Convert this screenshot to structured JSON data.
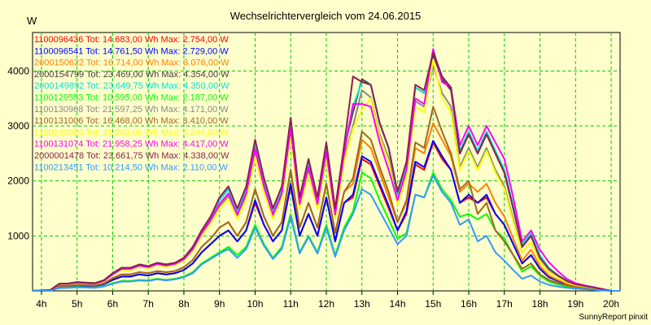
{
  "chart_data": {
    "type": "line",
    "title": "Wechselrichtervergleich vom 24.06.2015",
    "ylabel": "W",
    "footer": "SunnyReport pinxit",
    "ylim": [
      0,
      4700
    ],
    "xlim": [
      3.75,
      20.25
    ],
    "y_ticks": [
      1000,
      2000,
      3000,
      4000
    ],
    "x_ticks": [
      {
        "v": 4,
        "label": "4h"
      },
      {
        "v": 5,
        "label": "5h"
      },
      {
        "v": 6,
        "label": "6h"
      },
      {
        "v": 7,
        "label": "7h"
      },
      {
        "v": 8,
        "label": "8h"
      },
      {
        "v": 9,
        "label": "9h"
      },
      {
        "v": 10,
        "label": "10h"
      },
      {
        "v": 11,
        "label": "11h"
      },
      {
        "v": 12,
        "label": "12h"
      },
      {
        "v": 13,
        "label": "13h"
      },
      {
        "v": 14,
        "label": "14h"
      },
      {
        "v": 15,
        "label": "15h"
      },
      {
        "v": 16,
        "label": "16h"
      },
      {
        "v": 17,
        "label": "17h"
      },
      {
        "v": 18,
        "label": "18h"
      },
      {
        "v": 19,
        "label": "19h"
      },
      {
        "v": 20,
        "label": "20h"
      }
    ],
    "grid": true,
    "legend_position": "top-left",
    "x": [
      3.75,
      4.25,
      4.5,
      4.75,
      5,
      5.25,
      5.5,
      5.75,
      6,
      6.25,
      6.5,
      6.75,
      7,
      7.25,
      7.5,
      7.75,
      8,
      8.25,
      8.5,
      8.75,
      9,
      9.25,
      9.5,
      9.75,
      10,
      10.25,
      10.5,
      10.75,
      11,
      11.25,
      11.5,
      11.75,
      12,
      12.25,
      12.5,
      12.75,
      13,
      13.25,
      13.5,
      13.75,
      14,
      14.25,
      14.5,
      14.75,
      15,
      15.25,
      15.5,
      15.75,
      16,
      16.25,
      16.5,
      16.75,
      17,
      17.25,
      17.5,
      17.75,
      18,
      18.25,
      18.5,
      18.75,
      19,
      19.25,
      19.5,
      19.75,
      20,
      20.25
    ],
    "series": [
      {
        "name": "1100096436 Tot: 14.683,00 Wh Max: 2.754,00 W",
        "color": "#ff0000",
        "values": [
          0,
          10,
          80,
          85,
          100,
          95,
          90,
          120,
          200,
          260,
          260,
          300,
          280,
          320,
          300,
          320,
          380,
          500,
          700,
          850,
          1000,
          1100,
          900,
          1100,
          1600,
          1200,
          900,
          1100,
          1900,
          1000,
          1400,
          1000,
          1700,
          900,
          1600,
          1700,
          2400,
          2300,
          1900,
          1500,
          1100,
          1400,
          2300,
          2200,
          2700,
          2400,
          2200,
          1600,
          1700,
          1600,
          1700,
          1400,
          1200,
          850,
          500,
          650,
          400,
          250,
          180,
          120,
          80,
          60,
          40,
          20,
          0,
          0
        ]
      },
      {
        "name": "1100096541 Tot: 14.761,50 Wh Max: 2.729,00 W",
        "color": "#0000ff",
        "values": [
          0,
          10,
          80,
          85,
          100,
          95,
          90,
          120,
          200,
          260,
          260,
          300,
          280,
          320,
          300,
          320,
          380,
          500,
          700,
          850,
          1000,
          1100,
          900,
          1100,
          1650,
          1200,
          900,
          1100,
          1950,
          1000,
          1400,
          1000,
          1700,
          900,
          1600,
          1750,
          2450,
          2350,
          1950,
          1550,
          1100,
          1450,
          2350,
          2250,
          2730,
          2450,
          2200,
          1600,
          1750,
          1600,
          1750,
          1400,
          1200,
          850,
          500,
          650,
          400,
          250,
          180,
          120,
          80,
          60,
          40,
          20,
          0,
          0
        ]
      },
      {
        "name": "2000150622 Tot: 16.714,00 Wh Max: 3.076,00 W",
        "color": "#ff8000",
        "values": [
          0,
          10,
          90,
          95,
          110,
          105,
          100,
          135,
          230,
          300,
          300,
          340,
          320,
          360,
          340,
          360,
          430,
          560,
          800,
          950,
          1150,
          1250,
          1000,
          1250,
          1850,
          1350,
          1000,
          1250,
          2200,
          1150,
          1600,
          1150,
          1950,
          1050,
          1800,
          1950,
          2750,
          2600,
          2150,
          1700,
          1250,
          1600,
          2600,
          2500,
          3050,
          2750,
          2450,
          1800,
          1950,
          1800,
          1950,
          1600,
          1350,
          950,
          550,
          750,
          450,
          280,
          200,
          130,
          90,
          65,
          45,
          20,
          0,
          0
        ]
      },
      {
        "name": "2000154799 Tot: 23.469,00 Wh Max: 4.354,00 W",
        "color": "#404040",
        "values": [
          0,
          15,
          130,
          135,
          160,
          150,
          140,
          190,
          320,
          420,
          420,
          480,
          450,
          510,
          480,
          510,
          600,
          800,
          1100,
          1350,
          1650,
          1850,
          1450,
          1850,
          2700,
          2000,
          1450,
          1850,
          3100,
          1650,
          2350,
          1650,
          2650,
          1450,
          2600,
          3250,
          3850,
          3750,
          3050,
          2600,
          1750,
          2300,
          3700,
          3600,
          4300,
          3850,
          3650,
          2500,
          2850,
          2500,
          2850,
          2500,
          2150,
          1500,
          800,
          1000,
          600,
          400,
          280,
          180,
          120,
          90,
          60,
          30,
          0,
          0
        ]
      },
      {
        "name": "2000149892 Tot: 23.649,75 Wh Max: 4.350,00 W",
        "color": "#00e0e0",
        "values": [
          0,
          15,
          130,
          135,
          160,
          150,
          140,
          190,
          320,
          420,
          420,
          480,
          450,
          510,
          480,
          510,
          600,
          800,
          1100,
          1350,
          1650,
          1850,
          1450,
          1850,
          2700,
          2000,
          1450,
          1850,
          3100,
          1650,
          2350,
          1650,
          2650,
          1450,
          2600,
          3350,
          3800,
          3750,
          3050,
          2600,
          1750,
          2300,
          3700,
          3600,
          4350,
          3900,
          3700,
          2550,
          2900,
          2550,
          2900,
          2550,
          2200,
          1550,
          850,
          1050,
          650,
          420,
          290,
          190,
          125,
          95,
          65,
          30,
          0,
          0
        ]
      },
      {
        "name": "1100129553 Tot: 10.595,00 Wh Max: 2.187,00 W",
        "color": "#00ff00",
        "values": [
          0,
          5,
          55,
          60,
          70,
          65,
          60,
          85,
          140,
          180,
          180,
          200,
          190,
          220,
          200,
          220,
          260,
          340,
          500,
          600,
          700,
          800,
          650,
          800,
          1200,
          850,
          600,
          800,
          1400,
          700,
          1000,
          700,
          1200,
          650,
          1150,
          1450,
          2150,
          2050,
          1650,
          1300,
          950,
          1050,
          1750,
          1700,
          2150,
          1850,
          1650,
          1350,
          1400,
          1300,
          1400,
          1100,
          950,
          650,
          350,
          450,
          280,
          170,
          120,
          80,
          55,
          40,
          25,
          10,
          0,
          0
        ]
      },
      {
        "name": "1100130968 Tot: 21.597,25 Wh Max: 4.171,00 W",
        "color": "#888888",
        "values": [
          0,
          15,
          120,
          125,
          150,
          140,
          130,
          175,
          300,
          390,
          390,
          450,
          420,
          480,
          450,
          480,
          560,
          740,
          1030,
          1260,
          1540,
          1720,
          1350,
          1720,
          2500,
          1850,
          1350,
          1720,
          2900,
          1550,
          2180,
          1550,
          2470,
          1350,
          2420,
          3000,
          3650,
          3520,
          2850,
          2420,
          1620,
          2150,
          3450,
          3350,
          4100,
          3600,
          3350,
          2250,
          2600,
          2250,
          2600,
          2200,
          1900,
          1300,
          700,
          880,
          530,
          350,
          240,
          160,
          105,
          80,
          55,
          25,
          0,
          0
        ]
      },
      {
        "name": "1100131006 Tot: 16.468,00 Wh Max: 3.410,00 W",
        "color": "#a06820",
        "values": [
          0,
          10,
          90,
          95,
          110,
          105,
          100,
          135,
          230,
          300,
          300,
          340,
          320,
          360,
          340,
          360,
          430,
          560,
          800,
          950,
          1150,
          1250,
          1000,
          1250,
          1850,
          1350,
          1000,
          1250,
          2200,
          1150,
          1600,
          1150,
          1950,
          1050,
          1800,
          2050,
          2900,
          2750,
          2250,
          1800,
          1250,
          1650,
          2700,
          2600,
          3350,
          2900,
          2500,
          1850,
          2000,
          1400,
          1600,
          1100,
          900,
          650,
          400,
          500,
          300,
          200,
          140,
          100,
          70,
          50,
          35,
          15,
          0,
          0
        ]
      },
      {
        "name": "1100131023 Tot: 21.283,00 Wh Max: 4.244,00 W",
        "color": "#ffff00",
        "values": [
          0,
          15,
          120,
          125,
          145,
          135,
          125,
          170,
          290,
          380,
          380,
          440,
          410,
          470,
          440,
          470,
          550,
          720,
          1000,
          1220,
          1490,
          1670,
          1310,
          1670,
          2440,
          1800,
          1310,
          1670,
          2800,
          1490,
          2120,
          1490,
          2400,
          1310,
          2350,
          2950,
          3300,
          3500,
          2800,
          2350,
          1570,
          2080,
          3350,
          3250,
          4200,
          3500,
          3250,
          2200,
          2550,
          2200,
          2550,
          2150,
          1850,
          1250,
          700,
          880,
          520,
          340,
          240,
          160,
          105,
          80,
          55,
          25,
          0,
          0
        ]
      },
      {
        "name": "1100131074 Tot: 21.958,25 Wh Max: 4.417,00 W",
        "color": "#ff00ff",
        "values": [
          0,
          15,
          125,
          130,
          150,
          140,
          130,
          180,
          300,
          400,
          400,
          460,
          430,
          490,
          460,
          490,
          575,
          760,
          1050,
          1290,
          1580,
          1770,
          1390,
          1770,
          2580,
          1900,
          1390,
          1770,
          2950,
          1580,
          2250,
          1580,
          2530,
          1390,
          2500,
          3400,
          3400,
          3350,
          2700,
          2200,
          1650,
          2200,
          3500,
          3400,
          4400,
          3800,
          3700,
          2650,
          3000,
          2650,
          3000,
          2700,
          2400,
          1700,
          900,
          1100,
          750,
          520,
          360,
          220,
          140,
          100,
          70,
          35,
          0,
          0
        ]
      },
      {
        "name": "2000001478 Tot: 23.661,75 Wh Max: 4.338,00 W",
        "color": "#8b2050",
        "values": [
          0,
          15,
          130,
          135,
          160,
          150,
          140,
          190,
          320,
          420,
          420,
          480,
          450,
          510,
          480,
          510,
          600,
          800,
          1100,
          1350,
          1700,
          1900,
          1500,
          1900,
          2750,
          2050,
          1500,
          1900,
          3150,
          1700,
          2400,
          1700,
          2700,
          1500,
          2650,
          3900,
          3800,
          3750,
          3050,
          2600,
          1800,
          2350,
          3750,
          3650,
          4338,
          3900,
          3700,
          2500,
          2850,
          2500,
          2850,
          2500,
          2150,
          1500,
          800,
          1000,
          600,
          400,
          280,
          180,
          120,
          90,
          60,
          30,
          0,
          0
        ]
      },
      {
        "name": "1100213451 Tot: 10.214,50 Wh Max: 2.110,00 W",
        "color": "#3399ff",
        "values": [
          0,
          5,
          50,
          55,
          65,
          60,
          55,
          80,
          130,
          170,
          170,
          190,
          180,
          210,
          190,
          210,
          250,
          320,
          480,
          580,
          680,
          760,
          600,
          760,
          1150,
          820,
          580,
          760,
          1350,
          680,
          980,
          680,
          1150,
          620,
          1100,
          1400,
          1850,
          1750,
          1450,
          1150,
          850,
          1000,
          1750,
          1700,
          2100,
          1800,
          1600,
          1200,
          1300,
          900,
          1000,
          700,
          550,
          380,
          220,
          280,
          170,
          110,
          80,
          55,
          40,
          30,
          20,
          8,
          0,
          0
        ]
      }
    ]
  }
}
